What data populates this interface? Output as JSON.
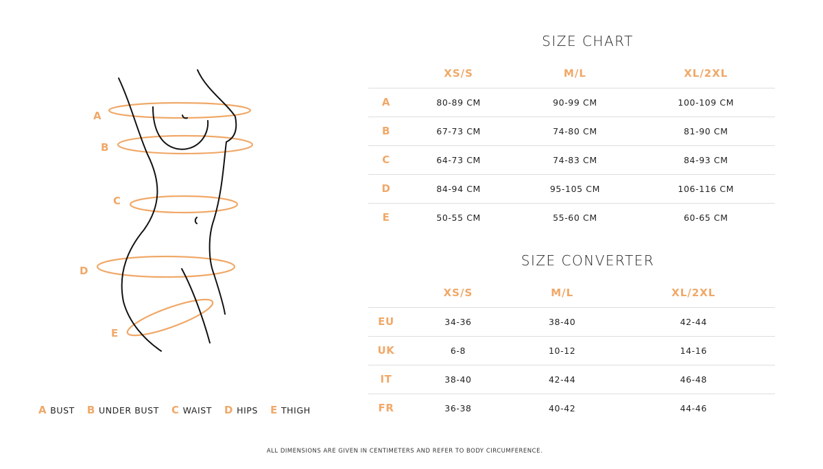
{
  "accent": "#f0a868",
  "figure": {
    "labels": [
      "A",
      "B",
      "C",
      "D",
      "E"
    ]
  },
  "legend": [
    {
      "letter": "A",
      "label": "BUST"
    },
    {
      "letter": "B",
      "label": "UNDER BUST"
    },
    {
      "letter": "C",
      "label": "WAIST"
    },
    {
      "letter": "D",
      "label": "HIPS"
    },
    {
      "letter": "E",
      "label": "THIGH"
    }
  ],
  "size_chart": {
    "title": "SIZE CHART",
    "headers": [
      "XS/S",
      "M/L",
      "XL/2XL"
    ],
    "rows": [
      {
        "key": "A",
        "values": [
          "80-89 CM",
          "90-99 CM",
          "100-109 CM"
        ]
      },
      {
        "key": "B",
        "values": [
          "67-73 CM",
          "74-80 CM",
          "81-90 CM"
        ]
      },
      {
        "key": "C",
        "values": [
          "64-73 CM",
          "74-83 CM",
          "84-93 CM"
        ]
      },
      {
        "key": "D",
        "values": [
          "84-94 CM",
          "95-105 CM",
          "106-116 CM"
        ]
      },
      {
        "key": "E",
        "values": [
          "50-55 CM",
          "55-60 CM",
          "60-65 CM"
        ]
      }
    ]
  },
  "size_converter": {
    "title": "SIZE CONVERTER",
    "headers": [
      "XS/S",
      "M/L",
      "XL/2XL"
    ],
    "rows": [
      {
        "key": "EU",
        "values": [
          "34-36",
          "38-40",
          "42-44"
        ]
      },
      {
        "key": "UK",
        "values": [
          "6-8",
          "10-12",
          "14-16"
        ]
      },
      {
        "key": "IT",
        "values": [
          "38-40",
          "42-44",
          "46-48"
        ]
      },
      {
        "key": "FR",
        "values": [
          "36-38",
          "40-42",
          "44-46"
        ]
      }
    ]
  },
  "footnote": "ALL DIMENSIONS ARE GIVEN IN CENTIMETERS AND REFER TO BODY CIRCUMFERENCE."
}
